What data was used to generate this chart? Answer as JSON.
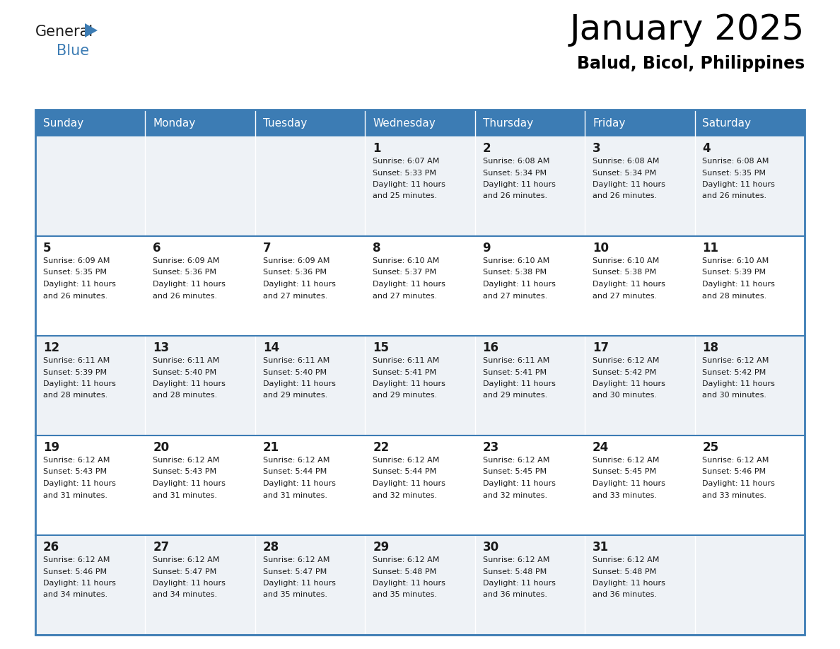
{
  "title": "January 2025",
  "subtitle": "Balud, Bicol, Philippines",
  "header_bg_color": "#3c7cb4",
  "header_text_color": "#ffffff",
  "cell_bg_light": "#eef2f6",
  "cell_bg_white": "#ffffff",
  "border_color": "#3c7cb4",
  "divider_color": "#3c7cb4",
  "text_color": "#1a1a1a",
  "days_of_week": [
    "Sunday",
    "Monday",
    "Tuesday",
    "Wednesday",
    "Thursday",
    "Friday",
    "Saturday"
  ],
  "weeks": [
    [
      {
        "day": "",
        "sunrise": "",
        "sunset": "",
        "daylight": ""
      },
      {
        "day": "",
        "sunrise": "",
        "sunset": "",
        "daylight": ""
      },
      {
        "day": "",
        "sunrise": "",
        "sunset": "",
        "daylight": ""
      },
      {
        "day": "1",
        "sunrise": "6:07 AM",
        "sunset": "5:33 PM",
        "daylight": "11 hours and 25 minutes."
      },
      {
        "day": "2",
        "sunrise": "6:08 AM",
        "sunset": "5:34 PM",
        "daylight": "11 hours and 26 minutes."
      },
      {
        "day": "3",
        "sunrise": "6:08 AM",
        "sunset": "5:34 PM",
        "daylight": "11 hours and 26 minutes."
      },
      {
        "day": "4",
        "sunrise": "6:08 AM",
        "sunset": "5:35 PM",
        "daylight": "11 hours and 26 minutes."
      }
    ],
    [
      {
        "day": "5",
        "sunrise": "6:09 AM",
        "sunset": "5:35 PM",
        "daylight": "11 hours and 26 minutes."
      },
      {
        "day": "6",
        "sunrise": "6:09 AM",
        "sunset": "5:36 PM",
        "daylight": "11 hours and 26 minutes."
      },
      {
        "day": "7",
        "sunrise": "6:09 AM",
        "sunset": "5:36 PM",
        "daylight": "11 hours and 27 minutes."
      },
      {
        "day": "8",
        "sunrise": "6:10 AM",
        "sunset": "5:37 PM",
        "daylight": "11 hours and 27 minutes."
      },
      {
        "day": "9",
        "sunrise": "6:10 AM",
        "sunset": "5:38 PM",
        "daylight": "11 hours and 27 minutes."
      },
      {
        "day": "10",
        "sunrise": "6:10 AM",
        "sunset": "5:38 PM",
        "daylight": "11 hours and 27 minutes."
      },
      {
        "day": "11",
        "sunrise": "6:10 AM",
        "sunset": "5:39 PM",
        "daylight": "11 hours and 28 minutes."
      }
    ],
    [
      {
        "day": "12",
        "sunrise": "6:11 AM",
        "sunset": "5:39 PM",
        "daylight": "11 hours and 28 minutes."
      },
      {
        "day": "13",
        "sunrise": "6:11 AM",
        "sunset": "5:40 PM",
        "daylight": "11 hours and 28 minutes."
      },
      {
        "day": "14",
        "sunrise": "6:11 AM",
        "sunset": "5:40 PM",
        "daylight": "11 hours and 29 minutes."
      },
      {
        "day": "15",
        "sunrise": "6:11 AM",
        "sunset": "5:41 PM",
        "daylight": "11 hours and 29 minutes."
      },
      {
        "day": "16",
        "sunrise": "6:11 AM",
        "sunset": "5:41 PM",
        "daylight": "11 hours and 29 minutes."
      },
      {
        "day": "17",
        "sunrise": "6:12 AM",
        "sunset": "5:42 PM",
        "daylight": "11 hours and 30 minutes."
      },
      {
        "day": "18",
        "sunrise": "6:12 AM",
        "sunset": "5:42 PM",
        "daylight": "11 hours and 30 minutes."
      }
    ],
    [
      {
        "day": "19",
        "sunrise": "6:12 AM",
        "sunset": "5:43 PM",
        "daylight": "11 hours and 31 minutes."
      },
      {
        "day": "20",
        "sunrise": "6:12 AM",
        "sunset": "5:43 PM",
        "daylight": "11 hours and 31 minutes."
      },
      {
        "day": "21",
        "sunrise": "6:12 AM",
        "sunset": "5:44 PM",
        "daylight": "11 hours and 31 minutes."
      },
      {
        "day": "22",
        "sunrise": "6:12 AM",
        "sunset": "5:44 PM",
        "daylight": "11 hours and 32 minutes."
      },
      {
        "day": "23",
        "sunrise": "6:12 AM",
        "sunset": "5:45 PM",
        "daylight": "11 hours and 32 minutes."
      },
      {
        "day": "24",
        "sunrise": "6:12 AM",
        "sunset": "5:45 PM",
        "daylight": "11 hours and 33 minutes."
      },
      {
        "day": "25",
        "sunrise": "6:12 AM",
        "sunset": "5:46 PM",
        "daylight": "11 hours and 33 minutes."
      }
    ],
    [
      {
        "day": "26",
        "sunrise": "6:12 AM",
        "sunset": "5:46 PM",
        "daylight": "11 hours and 34 minutes."
      },
      {
        "day": "27",
        "sunrise": "6:12 AM",
        "sunset": "5:47 PM",
        "daylight": "11 hours and 34 minutes."
      },
      {
        "day": "28",
        "sunrise": "6:12 AM",
        "sunset": "5:47 PM",
        "daylight": "11 hours and 35 minutes."
      },
      {
        "day": "29",
        "sunrise": "6:12 AM",
        "sunset": "5:48 PM",
        "daylight": "11 hours and 35 minutes."
      },
      {
        "day": "30",
        "sunrise": "6:12 AM",
        "sunset": "5:48 PM",
        "daylight": "11 hours and 36 minutes."
      },
      {
        "day": "31",
        "sunrise": "6:12 AM",
        "sunset": "5:48 PM",
        "daylight": "11 hours and 36 minutes."
      },
      {
        "day": "",
        "sunrise": "",
        "sunset": "",
        "daylight": ""
      }
    ]
  ],
  "logo_general_color": "#1a1a1a",
  "logo_blue_color": "#3c7cb4",
  "logo_triangle_color": "#3c7cb4"
}
